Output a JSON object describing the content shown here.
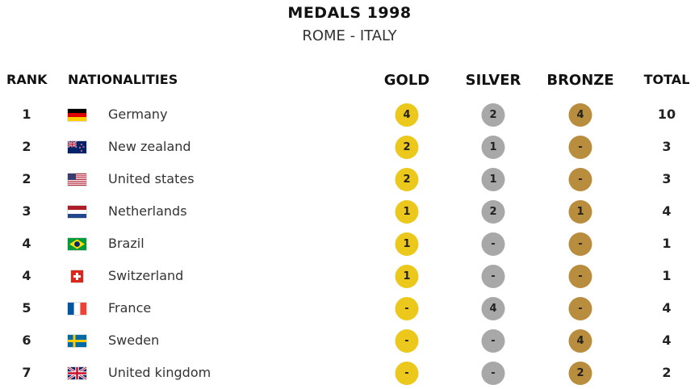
{
  "title": "MEDALS 1998",
  "subtitle": "ROME - ITALY",
  "headers": {
    "rank": "RANK",
    "nationalities": "NATIONALITIES",
    "gold": "GOLD",
    "silver": "SILVER",
    "bronze": "BRONZE",
    "total": "TOTAL"
  },
  "colors": {
    "gold": "#ecc81c",
    "silver": "#a8a8a8",
    "bronze": "#b88d3e"
  },
  "rows": [
    {
      "rank": "1",
      "flag": "germany-flag-icon",
      "country": "Germany",
      "gold": "4",
      "silver": "2",
      "bronze": "4",
      "total": "10"
    },
    {
      "rank": "2",
      "flag": "new-zealand-flag-icon",
      "country": "New zealand",
      "gold": "2",
      "silver": "1",
      "bronze": "-",
      "total": "3"
    },
    {
      "rank": "2",
      "flag": "united-states-flag-icon",
      "country": "United states",
      "gold": "2",
      "silver": "1",
      "bronze": "-",
      "total": "3"
    },
    {
      "rank": "3",
      "flag": "netherlands-flag-icon",
      "country": "Netherlands",
      "gold": "1",
      "silver": "2",
      "bronze": "1",
      "total": "4"
    },
    {
      "rank": "4",
      "flag": "brazil-flag-icon",
      "country": "Brazil",
      "gold": "1",
      "silver": "-",
      "bronze": "-",
      "total": "1"
    },
    {
      "rank": "4",
      "flag": "switzerland-flag-icon",
      "country": "Switzerland",
      "gold": "1",
      "silver": "-",
      "bronze": "-",
      "total": "1"
    },
    {
      "rank": "5",
      "flag": "france-flag-icon",
      "country": "France",
      "gold": "-",
      "silver": "4",
      "bronze": "-",
      "total": "4"
    },
    {
      "rank": "6",
      "flag": "sweden-flag-icon",
      "country": "Sweden",
      "gold": "-",
      "silver": "-",
      "bronze": "4",
      "total": "4"
    },
    {
      "rank": "7",
      "flag": "united-kingdom-flag-icon",
      "country": "United kingdom",
      "gold": "-",
      "silver": "-",
      "bronze": "2",
      "total": "2"
    }
  ]
}
